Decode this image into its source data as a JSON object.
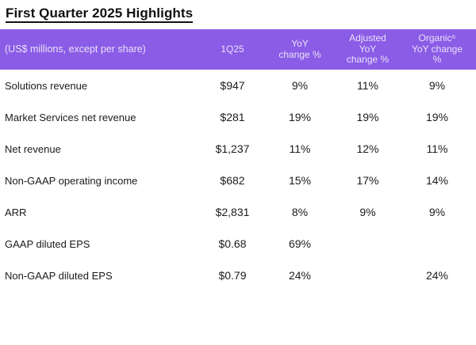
{
  "page": {
    "title": "First Quarter 2025 Highlights"
  },
  "colors": {
    "header_bg": "#8B5CE6",
    "header_text": "#E9E1F9",
    "body_text": "#1A1A1A"
  },
  "table": {
    "columns": [
      {
        "label": "(US$ millions, except per share)"
      },
      {
        "label": "1Q25"
      },
      {
        "label": "YoY\nchange %"
      },
      {
        "label": "Adjusted\nYoY\nchange %"
      },
      {
        "label": "Organic⁶\nYoY change\n%"
      }
    ],
    "rows": [
      {
        "label": "Solutions revenue",
        "q1_25": "$947",
        "yoy": "9%",
        "adjusted_yoy": "11%",
        "organic_yoy": "9%"
      },
      {
        "label": "Market Services net revenue",
        "q1_25": "$281",
        "yoy": "19%",
        "adjusted_yoy": "19%",
        "organic_yoy": "19%"
      },
      {
        "label": "Net revenue",
        "q1_25": "$1,237",
        "yoy": "11%",
        "adjusted_yoy": "12%",
        "organic_yoy": "11%"
      },
      {
        "label": "Non-GAAP operating income",
        "q1_25": "$682",
        "yoy": "15%",
        "adjusted_yoy": "17%",
        "organic_yoy": "14%"
      },
      {
        "label": "ARR",
        "q1_25": "$2,831",
        "yoy": "8%",
        "adjusted_yoy": "9%",
        "organic_yoy": "9%"
      },
      {
        "label": "GAAP diluted EPS",
        "q1_25": "$0.68",
        "yoy": "69%",
        "adjusted_yoy": "",
        "organic_yoy": ""
      },
      {
        "label": "Non-GAAP diluted EPS",
        "q1_25": "$0.79",
        "yoy": "24%",
        "adjusted_yoy": "",
        "organic_yoy": "24%"
      }
    ]
  }
}
